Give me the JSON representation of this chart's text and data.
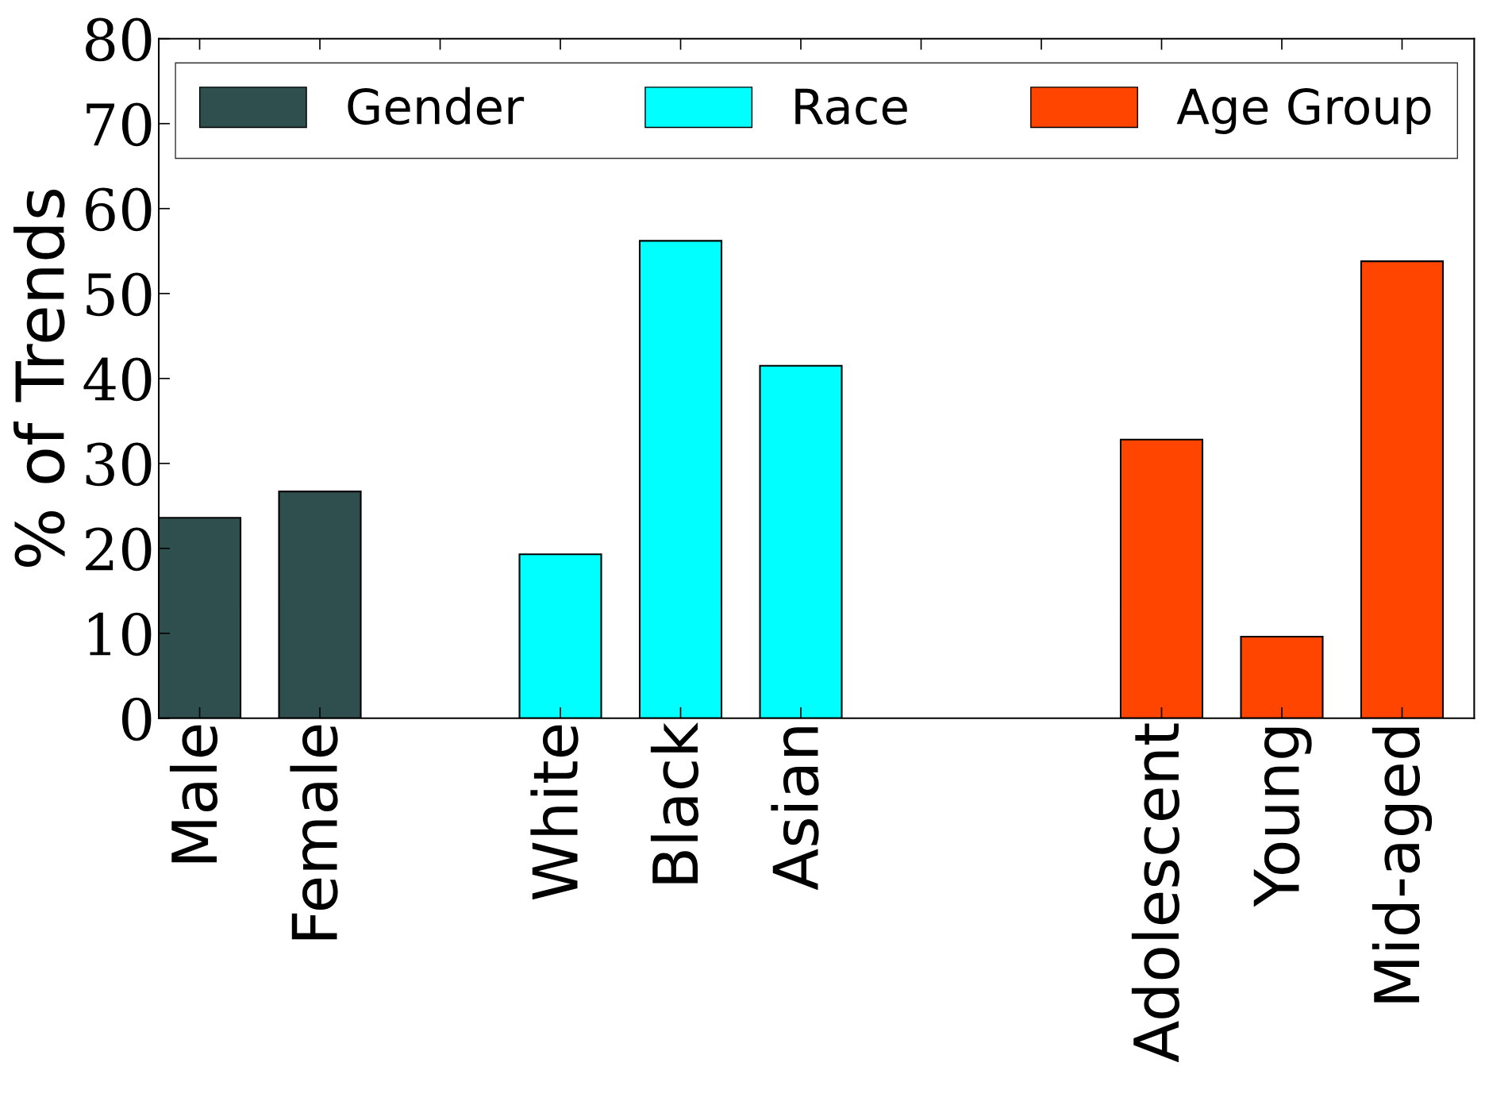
{
  "chart_data": {
    "type": "bar",
    "ylabel": "% of Trends",
    "categories": [
      "Male",
      "Female",
      null,
      "White",
      "Black",
      "Asian",
      null,
      null,
      "Adolescent",
      "Young",
      "Mid-aged"
    ],
    "series": [
      {
        "name": "Gender",
        "color": "#2f4f4f",
        "values": [
          23.6,
          26.7,
          null,
          null,
          null,
          null,
          null,
          null,
          null,
          null,
          null
        ]
      },
      {
        "name": "Race",
        "color": "#00ffff",
        "values": [
          null,
          null,
          null,
          19.3,
          56.2,
          41.5,
          null,
          null,
          null,
          null,
          null
        ]
      },
      {
        "name": "Age Group",
        "color": "#ff4500",
        "values": [
          null,
          null,
          null,
          null,
          null,
          null,
          null,
          null,
          32.8,
          9.6,
          53.8
        ]
      }
    ],
    "ylim": [
      0,
      80
    ],
    "yticks": [
      0,
      10,
      20,
      30,
      40,
      50,
      60,
      70,
      80
    ],
    "grid": false,
    "legend": "top"
  }
}
